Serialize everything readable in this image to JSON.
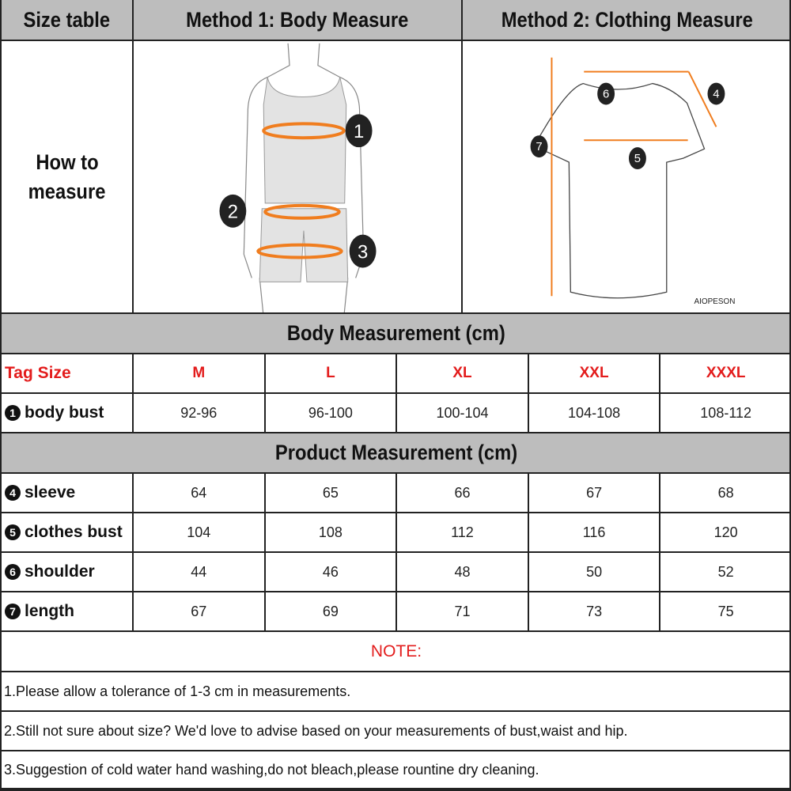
{
  "header": {
    "col1": "Size table",
    "col2": "Method 1: Body  Measure",
    "col3": "Method 2: Clothing Measure"
  },
  "how_to": {
    "label_line1": "How to",
    "label_line2": "measure",
    "body_markers": [
      "1",
      "2",
      "3"
    ],
    "shirt_markers": [
      "4",
      "5",
      "6",
      "7"
    ],
    "brand": "AIOPESON"
  },
  "body_section": {
    "title": "Body Measurement (cm)",
    "tag_label": "Tag Size",
    "sizes": [
      "M",
      "L",
      "XL",
      "XXL",
      "XXXL"
    ],
    "rows": [
      {
        "num": "1",
        "label": "body bust",
        "values": [
          "92-96",
          "96-100",
          "100-104",
          "104-108",
          "108-112"
        ]
      }
    ]
  },
  "product_section": {
    "title": "Product Measurement (cm)",
    "rows": [
      {
        "num": "4",
        "label": "sleeve",
        "values": [
          "64",
          "65",
          "66",
          "67",
          "68"
        ]
      },
      {
        "num": "5",
        "label": "clothes bust",
        "values": [
          "104",
          "108",
          "112",
          "116",
          "120"
        ]
      },
      {
        "num": "6",
        "label": "shoulder",
        "values": [
          "44",
          "46",
          "48",
          "50",
          "52"
        ]
      },
      {
        "num": "7",
        "label": "length",
        "values": [
          "67",
          "69",
          "71",
          "73",
          "75"
        ]
      }
    ]
  },
  "notes": {
    "title": "NOTE:",
    "items": [
      "1.Please allow a tolerance of 1-3 cm in measurements.",
      "2.Still not sure about size? We'd love to advise based on your measurements of bust,waist and hip.",
      "3.Suggestion of cold water hand washing,do not bleach,please rountine dry cleaning."
    ]
  },
  "colors": {
    "header_bg": "#bdbdbd",
    "size_red": "#e31c1c",
    "measure_orange": "#f07d1e"
  }
}
